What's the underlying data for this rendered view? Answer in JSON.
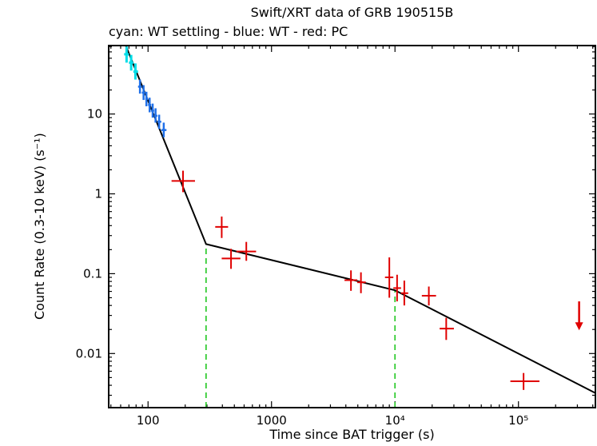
{
  "chart_data": {
    "type": "scatter",
    "title": "Swift/XRT data of GRB 190515B",
    "subtitle": "cyan: WT settling - blue: WT - red: PC",
    "xlabel": "Time since BAT trigger (s)",
    "ylabel": "Count Rate (0.3-10 keV) (s⁻¹)",
    "xscale": "log",
    "yscale": "log",
    "xlim": [
      48,
      420000
    ],
    "ylim": [
      0.0021,
      72
    ],
    "grid": false,
    "legend": "none (color key in subtitle)",
    "x_ticks": [
      {
        "value": 100,
        "label": "100"
      },
      {
        "value": 1000,
        "label": "1000"
      },
      {
        "value": 10000,
        "label": "10⁴"
      },
      {
        "value": 100000,
        "label": "10⁵"
      }
    ],
    "y_ticks": [
      {
        "value": 0.01,
        "label": "0.01"
      },
      {
        "value": 0.1,
        "label": "0.1"
      },
      {
        "value": 1,
        "label": "1"
      },
      {
        "value": 10,
        "label": "10"
      }
    ],
    "colors": {
      "wt_settling": "#00DDE8",
      "wt": "#2070E8",
      "pc": "#E00000",
      "model": "#000000",
      "break_line": "#33CC33"
    },
    "series": [
      {
        "name": "WT settling",
        "color_key": "wt_settling",
        "stroke_width": 3,
        "points": [
          {
            "t": 67,
            "t_lo": 64,
            "t_hi": 70,
            "r": 56,
            "r_lo": 44,
            "r_hi": 70
          },
          {
            "t": 73,
            "t_lo": 70,
            "t_hi": 76,
            "r": 44,
            "r_lo": 35,
            "r_hi": 55
          },
          {
            "t": 79,
            "t_lo": 76,
            "t_hi": 83,
            "r": 34,
            "r_lo": 27,
            "r_hi": 43
          }
        ]
      },
      {
        "name": "WT",
        "color_key": "wt",
        "stroke_width": 2.5,
        "points": [
          {
            "t": 86,
            "t_lo": 83,
            "t_hi": 89,
            "r": 22,
            "r_lo": 18,
            "r_hi": 27
          },
          {
            "t": 92,
            "t_lo": 89,
            "t_hi": 95,
            "r": 18.5,
            "r_lo": 15,
            "r_hi": 23
          },
          {
            "t": 97,
            "t_lo": 95,
            "t_hi": 100,
            "r": 15.5,
            "r_lo": 12.5,
            "r_hi": 19
          },
          {
            "t": 103,
            "t_lo": 100,
            "t_hi": 106,
            "r": 13,
            "r_lo": 10.5,
            "r_hi": 16
          },
          {
            "t": 109,
            "t_lo": 106,
            "t_hi": 112,
            "r": 11,
            "r_lo": 9,
            "r_hi": 13.5
          },
          {
            "t": 115,
            "t_lo": 112,
            "t_hi": 119,
            "r": 9.5,
            "r_lo": 7.8,
            "r_hi": 11.8
          },
          {
            "t": 123,
            "t_lo": 119,
            "t_hi": 128,
            "r": 8,
            "r_lo": 6.5,
            "r_hi": 9.8
          },
          {
            "t": 134,
            "t_lo": 128,
            "t_hi": 141,
            "r": 6.3,
            "r_lo": 5.1,
            "r_hi": 7.8
          }
        ]
      },
      {
        "name": "PC",
        "color_key": "pc",
        "stroke_width": 2,
        "points": [
          {
            "t": 192,
            "t_lo": 155,
            "t_hi": 240,
            "r": 1.45,
            "r_lo": 1.05,
            "r_hi": 1.95
          },
          {
            "t": 395,
            "t_lo": 350,
            "t_hi": 445,
            "r": 0.385,
            "r_lo": 0.28,
            "r_hi": 0.52
          },
          {
            "t": 470,
            "t_lo": 395,
            "t_hi": 560,
            "r": 0.155,
            "r_lo": 0.115,
            "r_hi": 0.205
          },
          {
            "t": 625,
            "t_lo": 520,
            "t_hi": 750,
            "r": 0.19,
            "r_lo": 0.145,
            "r_hi": 0.25
          },
          {
            "t": 4400,
            "t_lo": 3900,
            "t_hi": 4950,
            "r": 0.083,
            "r_lo": 0.061,
            "r_hi": 0.11
          },
          {
            "t": 5300,
            "t_lo": 4950,
            "t_hi": 5800,
            "r": 0.078,
            "r_lo": 0.057,
            "r_hi": 0.104
          },
          {
            "t": 9000,
            "t_lo": 8300,
            "t_hi": 9700,
            "r": 0.09,
            "r_lo": 0.05,
            "r_hi": 0.16
          },
          {
            "t": 10400,
            "t_lo": 9700,
            "t_hi": 11200,
            "r": 0.066,
            "r_lo": 0.045,
            "r_hi": 0.097
          },
          {
            "t": 11900,
            "t_lo": 11200,
            "t_hi": 12800,
            "r": 0.057,
            "r_lo": 0.04,
            "r_hi": 0.082
          },
          {
            "t": 18800,
            "t_lo": 16500,
            "t_hi": 21500,
            "r": 0.053,
            "r_lo": 0.04,
            "r_hi": 0.069
          },
          {
            "t": 26000,
            "t_lo": 23000,
            "t_hi": 30000,
            "r": 0.0205,
            "r_lo": 0.0148,
            "r_hi": 0.028
          },
          {
            "t": 110000,
            "t_lo": 86000,
            "t_hi": 148000,
            "r": 0.0045,
            "r_lo": 0.0035,
            "r_hi": 0.0057
          }
        ]
      }
    ],
    "model_line": [
      {
        "t": 66,
        "r": 72
      },
      {
        "t": 295,
        "r": 0.235
      },
      {
        "t": 10000,
        "r": 0.062
      },
      {
        "t": 420000,
        "r": 0.0032
      }
    ],
    "breaks": [
      {
        "t": 295,
        "top": 0.235
      },
      {
        "t": 10000,
        "top": 0.062
      }
    ],
    "upper_limit": {
      "t": 310000,
      "from": 0.045,
      "to": 0.02
    }
  }
}
